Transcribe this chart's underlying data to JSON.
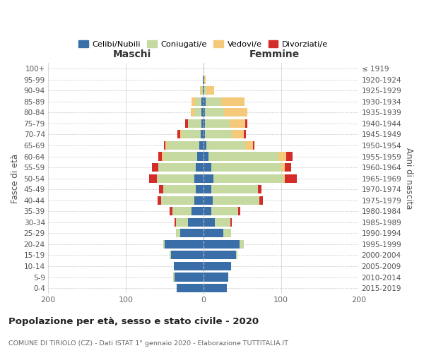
{
  "age_groups": [
    "0-4",
    "5-9",
    "10-14",
    "15-19",
    "20-24",
    "25-29",
    "30-34",
    "35-39",
    "40-44",
    "45-49",
    "50-54",
    "55-59",
    "60-64",
    "65-69",
    "70-74",
    "75-79",
    "80-84",
    "85-89",
    "90-94",
    "95-99",
    "100+"
  ],
  "birth_years": [
    "2015-2019",
    "2010-2014",
    "2005-2009",
    "2000-2004",
    "1995-1999",
    "1990-1994",
    "1985-1989",
    "1980-1984",
    "1975-1979",
    "1970-1974",
    "1965-1969",
    "1960-1964",
    "1955-1959",
    "1950-1954",
    "1945-1949",
    "1940-1944",
    "1935-1939",
    "1930-1934",
    "1925-1929",
    "1920-1924",
    "≤ 1919"
  ],
  "colors": {
    "celibi": "#3a6ea8",
    "coniugati": "#c5d9a0",
    "vedovi": "#f5c97a",
    "divorziati": "#d42b2b"
  },
  "males_celibi": [
    34,
    37,
    38,
    42,
    50,
    30,
    20,
    15,
    12,
    10,
    12,
    10,
    8,
    5,
    3,
    2,
    2,
    2,
    1,
    1,
    0
  ],
  "males_coniugati": [
    0,
    2,
    0,
    1,
    2,
    5,
    15,
    25,
    42,
    42,
    48,
    48,
    43,
    42,
    25,
    18,
    10,
    8,
    1,
    0,
    0
  ],
  "males_vedovi": [
    0,
    0,
    0,
    0,
    0,
    0,
    0,
    0,
    0,
    0,
    0,
    0,
    2,
    2,
    2,
    0,
    4,
    5,
    2,
    0,
    0
  ],
  "males_divorziati": [
    0,
    0,
    0,
    0,
    0,
    0,
    2,
    3,
    5,
    5,
    10,
    8,
    5,
    2,
    3,
    3,
    0,
    0,
    0,
    0,
    0
  ],
  "females_celibi": [
    30,
    32,
    36,
    42,
    47,
    26,
    15,
    10,
    12,
    10,
    13,
    10,
    7,
    4,
    2,
    2,
    2,
    3,
    1,
    1,
    0
  ],
  "females_coniugati": [
    0,
    0,
    0,
    2,
    5,
    10,
    20,
    35,
    60,
    60,
    90,
    90,
    90,
    50,
    35,
    32,
    25,
    20,
    3,
    0,
    0
  ],
  "females_vedovi": [
    0,
    0,
    0,
    0,
    0,
    0,
    0,
    0,
    0,
    0,
    2,
    5,
    10,
    10,
    15,
    20,
    30,
    30,
    10,
    2,
    0
  ],
  "females_divorziati": [
    0,
    0,
    0,
    0,
    0,
    0,
    2,
    3,
    5,
    5,
    15,
    8,
    8,
    2,
    3,
    3,
    0,
    0,
    0,
    0,
    0
  ],
  "title": "Popolazione per età, sesso e stato civile - 2020",
  "subtitle": "COMUNE DI TIRIOLO (CZ) - Dati ISTAT 1° gennaio 2020 - Elaborazione TUTTITALIA.IT",
  "label_maschi": "Maschi",
  "label_femmine": "Femmine",
  "ylabel_left": "Fasce di età",
  "ylabel_right": "Anni di nascita",
  "legend_labels": [
    "Celibi/Nubili",
    "Coniugati/e",
    "Vedovi/e",
    "Divorziati/e"
  ],
  "xlim": 200,
  "bg_color": "#ffffff",
  "grid_color": "#cccccc",
  "bar_height": 0.78
}
